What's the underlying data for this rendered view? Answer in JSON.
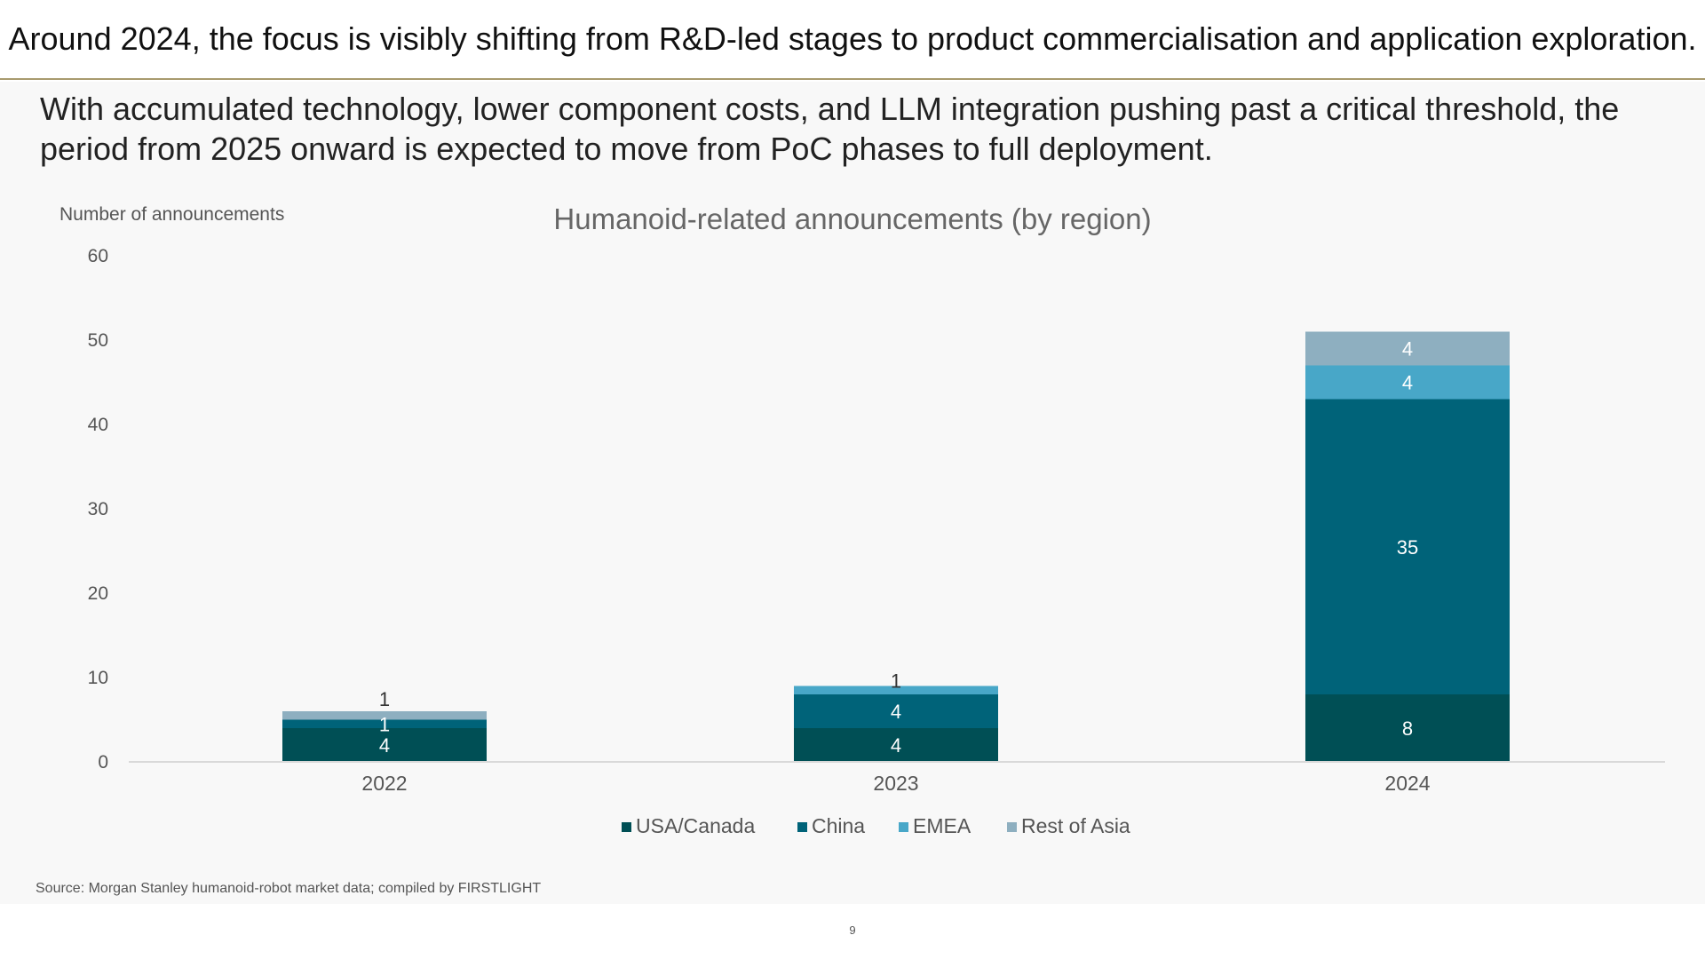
{
  "headline": "Around 2024, the focus is visibly shifting from R&D-led stages to product commercialisation and application exploration.",
  "subtitle": "With accumulated technology, lower component costs, and LLM integration pushing past a critical threshold, the period from 2025 onward is expected to move from PoC phases to full deployment.",
  "source": "Source: Morgan Stanley humanoid-robot market data; compiled by FIRSTLIGHT",
  "page_number": "9",
  "chart_data": {
    "type": "bar",
    "stacked": true,
    "title": "Humanoid-related announcements (by region)",
    "ylabel": "Number of announcements",
    "xlabel": "",
    "ylim": [
      0,
      60
    ],
    "yticks": [
      0,
      10,
      20,
      30,
      40,
      50,
      60
    ],
    "categories": [
      "2022",
      "2023",
      "2024"
    ],
    "series": [
      {
        "name": "USA/Canada",
        "color": "#004f55",
        "label_color": "#ffffff",
        "values": [
          4,
          4,
          8
        ]
      },
      {
        "name": "China",
        "color": "#006379",
        "label_color": "#ffffff",
        "values": [
          1,
          4,
          35
        ]
      },
      {
        "name": "EMEA",
        "color": "#48a7c8",
        "label_color": "#ffffff",
        "values": [
          0,
          1,
          4
        ]
      },
      {
        "name": "Rest of Asia",
        "color": "#8eafc0",
        "label_color": "#ffffff",
        "values": [
          1,
          0,
          4
        ]
      }
    ],
    "data_labels": [
      [
        "4",
        "4",
        "8"
      ],
      [
        "1",
        "4",
        "35"
      ],
      [
        "",
        "1",
        "4"
      ],
      [
        "1",
        "",
        "4"
      ]
    ],
    "legend_position": "bottom-center",
    "grid": false
  }
}
